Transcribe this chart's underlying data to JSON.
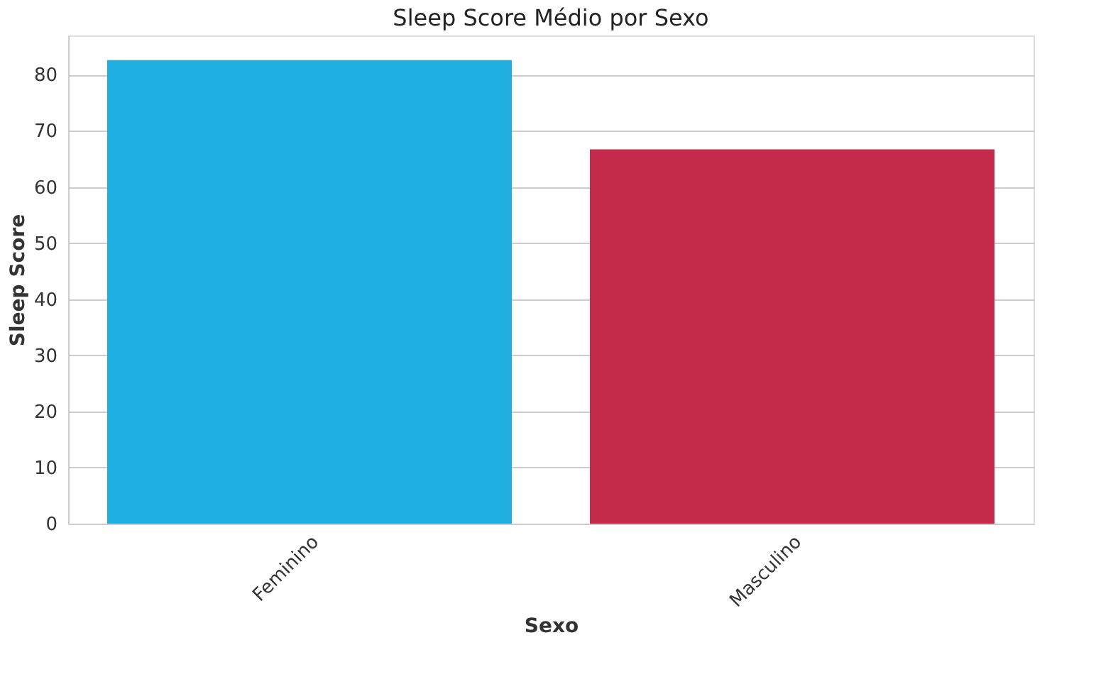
{
  "chart_data": {
    "type": "bar",
    "title": "Sleep Score Médio por Sexo",
    "xlabel": "Sexo",
    "ylabel": "Sleep Score",
    "categories": [
      "Feminino",
      "Masculino"
    ],
    "values": [
      82.6,
      66.7
    ],
    "colors": [
      "#20aee0",
      "#c42b4a"
    ],
    "ylim": [
      0,
      87
    ],
    "yticks": [
      0,
      10,
      20,
      30,
      40,
      50,
      60,
      70,
      80
    ],
    "grid": "y"
  }
}
